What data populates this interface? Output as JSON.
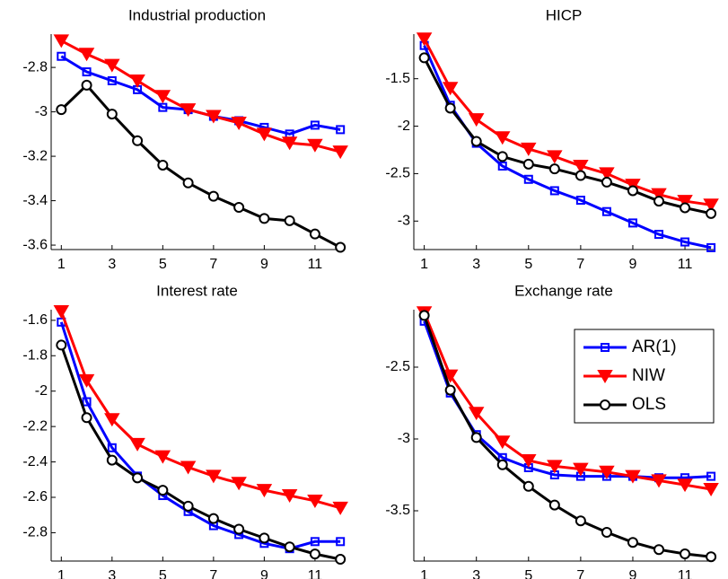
{
  "chart_data": [
    {
      "type": "line",
      "title": "Industrial production",
      "x": [
        1,
        2,
        3,
        4,
        5,
        6,
        7,
        8,
        9,
        10,
        11,
        12
      ],
      "series": [
        {
          "color": "#0000ff",
          "values": [
            -2.75,
            -2.82,
            -2.86,
            -2.9,
            -2.98,
            -2.99,
            -3.02,
            -3.04,
            -3.07,
            -3.1,
            -3.06,
            -3.08
          ]
        },
        {
          "color": "#ff0000",
          "values": [
            -2.68,
            -2.74,
            -2.79,
            -2.86,
            -2.93,
            -2.99,
            -3.02,
            -3.05,
            -3.1,
            -3.14,
            -3.15,
            -3.18
          ]
        },
        {
          "color": "#000000",
          "values": [
            -2.99,
            -2.88,
            -3.01,
            -3.13,
            -3.24,
            -3.32,
            -3.38,
            -3.43,
            -3.48,
            -3.49,
            -3.55,
            -3.61
          ]
        }
      ],
      "xlim": [
        0.6,
        12.1
      ],
      "ylim": [
        -3.62,
        -2.65
      ],
      "xticks": [
        1,
        3,
        5,
        7,
        9,
        11
      ],
      "yticks": [
        -3.6,
        -3.4,
        -3.2,
        -3,
        -2.8
      ]
    },
    {
      "type": "line",
      "title": "HICP",
      "x": [
        1,
        2,
        3,
        4,
        5,
        6,
        7,
        8,
        9,
        10,
        11,
        12
      ],
      "series": [
        {
          "color": "#0000ff",
          "values": [
            -1.15,
            -1.78,
            -2.18,
            -2.42,
            -2.56,
            -2.68,
            -2.78,
            -2.9,
            -3.02,
            -3.14,
            -3.22,
            -3.28
          ]
        },
        {
          "color": "#ff0000",
          "values": [
            -1.08,
            -1.6,
            -1.93,
            -2.12,
            -2.24,
            -2.32,
            -2.42,
            -2.5,
            -2.62,
            -2.72,
            -2.79,
            -2.83
          ]
        },
        {
          "color": "#000000",
          "values": [
            -1.28,
            -1.81,
            -2.16,
            -2.32,
            -2.4,
            -2.45,
            -2.52,
            -2.59,
            -2.68,
            -2.79,
            -2.86,
            -2.92
          ]
        }
      ],
      "xlim": [
        0.6,
        12.1
      ],
      "ylim": [
        -3.3,
        -1.03
      ],
      "xticks": [
        1,
        3,
        5,
        7,
        9,
        11
      ],
      "yticks": [
        -3,
        -2.5,
        -2,
        -1.5
      ]
    },
    {
      "type": "line",
      "title": "Interest rate",
      "x": [
        1,
        2,
        3,
        4,
        5,
        6,
        7,
        8,
        9,
        10,
        11,
        12
      ],
      "series": [
        {
          "color": "#0000ff",
          "values": [
            -1.61,
            -2.06,
            -2.32,
            -2.48,
            -2.59,
            -2.68,
            -2.76,
            -2.81,
            -2.86,
            -2.89,
            -2.85,
            -2.85
          ]
        },
        {
          "color": "#ff0000",
          "values": [
            -1.55,
            -1.94,
            -2.16,
            -2.3,
            -2.37,
            -2.43,
            -2.48,
            -2.52,
            -2.56,
            -2.59,
            -2.62,
            -2.66
          ]
        },
        {
          "color": "#000000",
          "values": [
            -1.74,
            -2.15,
            -2.39,
            -2.49,
            -2.56,
            -2.65,
            -2.72,
            -2.78,
            -2.83,
            -2.88,
            -2.92,
            -2.95
          ]
        }
      ],
      "xlim": [
        0.6,
        12.1
      ],
      "ylim": [
        -2.96,
        -1.54
      ],
      "xticks": [
        1,
        3,
        5,
        7,
        9,
        11
      ],
      "yticks": [
        -2.8,
        -2.6,
        -2.4,
        -2.2,
        -2,
        -1.8,
        -1.6
      ]
    },
    {
      "type": "line",
      "title": "Exchange rate",
      "x": [
        1,
        2,
        3,
        4,
        5,
        6,
        7,
        8,
        9,
        10,
        11,
        12
      ],
      "series": [
        {
          "name": "AR(1)",
          "color": "#0000ff",
          "values": [
            -2.18,
            -2.68,
            -2.97,
            -3.13,
            -3.2,
            -3.25,
            -3.26,
            -3.26,
            -3.26,
            -3.27,
            -3.27,
            -3.26
          ]
        },
        {
          "name": "NIW",
          "color": "#ff0000",
          "values": [
            -2.12,
            -2.56,
            -2.82,
            -3.02,
            -3.15,
            -3.19,
            -3.21,
            -3.23,
            -3.26,
            -3.29,
            -3.32,
            -3.35
          ]
        },
        {
          "name": "OLS",
          "color": "#000000",
          "values": [
            -2.14,
            -2.66,
            -2.99,
            -3.18,
            -3.33,
            -3.46,
            -3.57,
            -3.65,
            -3.72,
            -3.77,
            -3.8,
            -3.82
          ]
        }
      ],
      "xlim": [
        0.6,
        12.1
      ],
      "ylim": [
        -3.85,
        -2.1
      ],
      "xticks": [
        1,
        3,
        5,
        7,
        9,
        11
      ],
      "yticks": [
        -3.5,
        -3,
        -2.5
      ],
      "legend": "northeast"
    }
  ]
}
